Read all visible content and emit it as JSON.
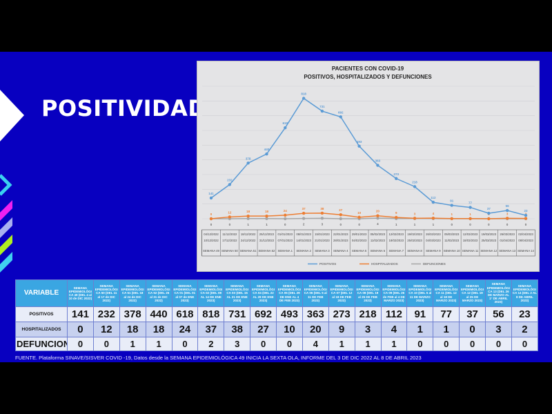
{
  "page": {
    "title": "POSITIVIDAD",
    "footer": "FUENTE. Plataforma SINAVE/SISVER COVID -19, Datos desde la SEMANA EPIDEMIOLÓGICA 49 INICIA LA SEXTA OLA, INFORME DEL 3 DE DIC 2022 AL 8 DE ABRIL  2023"
  },
  "colors": {
    "background": "#0800c0",
    "header": "#3aa6e2",
    "positivos": "#5b9bd5",
    "hospitalizados": "#ed7d31",
    "defunciones": "#a5a5a5"
  },
  "chart_data": {
    "type": "line",
    "title": "PACIENTES CON COVID-19",
    "subtitle": "POSITIVOS, HOSPITALIZADOS Y DEFUNCIONES",
    "categories": [
      "SEMANA 49",
      "SEMANA 50",
      "SEMANA 51",
      "SEMANA 52",
      "SEMANA 1",
      "SEMANA 2",
      "SEMANA 3",
      "SEMANA 4",
      "SEMANA 5",
      "SEMANA 6",
      "SEMANA 7",
      "SEMANA 8",
      "SEMANA 9",
      "SEMANA 10",
      "SEMANA 11",
      "SEMANA 12",
      "SEMANA 13",
      "SEMANA 14"
    ],
    "start_dates": [
      "04/12/2022",
      "11/12/2022",
      "18/12/2022",
      "25/12/2022",
      "01/01/2023",
      "08/01/2023",
      "15/01/2023",
      "22/01/2023",
      "29/01/2023",
      "05/02/2023",
      "12/02/2023",
      "19/02/2023",
      "26/02/2023",
      "05/03/2023",
      "12/03/2023",
      "19/03/2023",
      "26/03/2023",
      "02/04/2023"
    ],
    "end_dates": [
      "10/12/2022",
      "17/12/2022",
      "24/12/2022",
      "31/12/2022",
      "07/01/2023",
      "14/01/2023",
      "21/01/2023",
      "28/01/2023",
      "04/02/2023",
      "11/02/2023",
      "18/02/2023",
      "25/02/2023",
      "04/03/2023",
      "11/03/2023",
      "18/03/2023",
      "25/03/2023",
      "01/04/2023",
      "08/04/2023"
    ],
    "series": [
      {
        "name": "POSITIVOS",
        "color": "#5b9bd5",
        "values": [
          141,
          232,
          378,
          440,
          618,
          818,
          731,
          692,
          493,
          363,
          273,
          218,
          112,
          91,
          77,
          37,
          56,
          23
        ]
      },
      {
        "name": "HOSPITALIZADOS",
        "color": "#ed7d31",
        "values": [
          0,
          12,
          18,
          18,
          24,
          37,
          38,
          27,
          10,
          20,
          9,
          3,
          4,
          1,
          1,
          0,
          3,
          2
        ]
      },
      {
        "name": "DEFUNCIONES",
        "color": "#a5a5a5",
        "values": [
          0,
          0,
          1,
          1,
          0,
          2,
          3,
          0,
          0,
          4,
          1,
          1,
          1,
          0,
          0,
          0,
          0,
          0
        ]
      }
    ],
    "ylim": [
      0,
      900
    ],
    "grid": true,
    "legend": "bottom"
  },
  "table": {
    "variable_label": "VARIABLE",
    "headers": [
      "SEMANA EPIDEMIOLÓGICA 49 (DEL 4 al 10 de DIC 2022)",
      "SEMANA EPIDEMIOLÓGICA 50 (DEL 11 al 17 de DIC 2022)",
      "SEMANA EPIDEMIOLÓGICA 51 (DEL 18 al 24 de DIC 2022)",
      "SEMANA EPIDEMIOLÓGICA 52 (DEL 25 al 31 de DIC 2022)",
      "SEMANA EPIDEMIOLÓGICA 01 (DEL 01 al 07 de ENE 2023)",
      "SEMANA EPIDEMIOLÓGICA 02 (DEL 08 AL 14 DE ENE 2023)",
      "SEMANA EPIDEMIOLÓGICA 03 (DEL 15 AL 21 DE ENE 2023)",
      "SEMANA EPIDEMIOLÓGICA 04 (DEL 22 AL 28 DE ENE 2023)",
      "SEMANA EPIDEMIOLÓGICA 05 (DEL 29 DE ENE AL 4 DE FEB 2023)",
      "SEMANA EPIDEMIOLÓGICA 06 (DEL 5 al 11 DE FEB 2023)",
      "SEMANA EPIDEMIOLÓGICA 07 (DEL 12 al 18 DE FEB 2023)",
      "SEMANA EPIDEMIOLÓGICA 08 (DEL 19 al 25 DE FEB 2023)",
      "SEMANA EPIDEMIOLÓGICA 09 (DEL 26 de FEB al 4 DE MARZO 2023)",
      "SEMANA EPIDEMIOLÓGICA 10 (DEL 5 al 11 DE MARZO 2023)",
      "SEMANA EPIDEMIOLÓGICA 11 (DEL 12 al 18 DE MARZO 2023)",
      "SEMANA EPIDEMIOLÓGICA 12 (DEL 19 al 25 DE MARZO 2023)",
      "SEMANA EPIDEMIOLÓGICA 13 (DEL 26 DE MARZO AL 1° DE ABRIL 2023)",
      "SEMANA EPIDEMIOLÓGICA 14 (DEL 2 AL 8 DE ABRIL 2023)"
    ],
    "rows": [
      {
        "label": "POSITIVOS",
        "values": [
          141,
          232,
          378,
          440,
          618,
          818,
          731,
          692,
          493,
          363,
          273,
          218,
          112,
          91,
          77,
          37,
          56,
          23
        ]
      },
      {
        "label": "HOSPITALIZADOS",
        "values": [
          0,
          12,
          18,
          18,
          24,
          37,
          38,
          27,
          10,
          20,
          9,
          3,
          4,
          1,
          1,
          0,
          3,
          2
        ]
      },
      {
        "label": "DEFUNCIONES",
        "values": [
          0,
          0,
          1,
          1,
          0,
          2,
          3,
          0,
          0,
          4,
          1,
          1,
          1,
          0,
          0,
          0,
          0,
          0
        ]
      }
    ]
  }
}
